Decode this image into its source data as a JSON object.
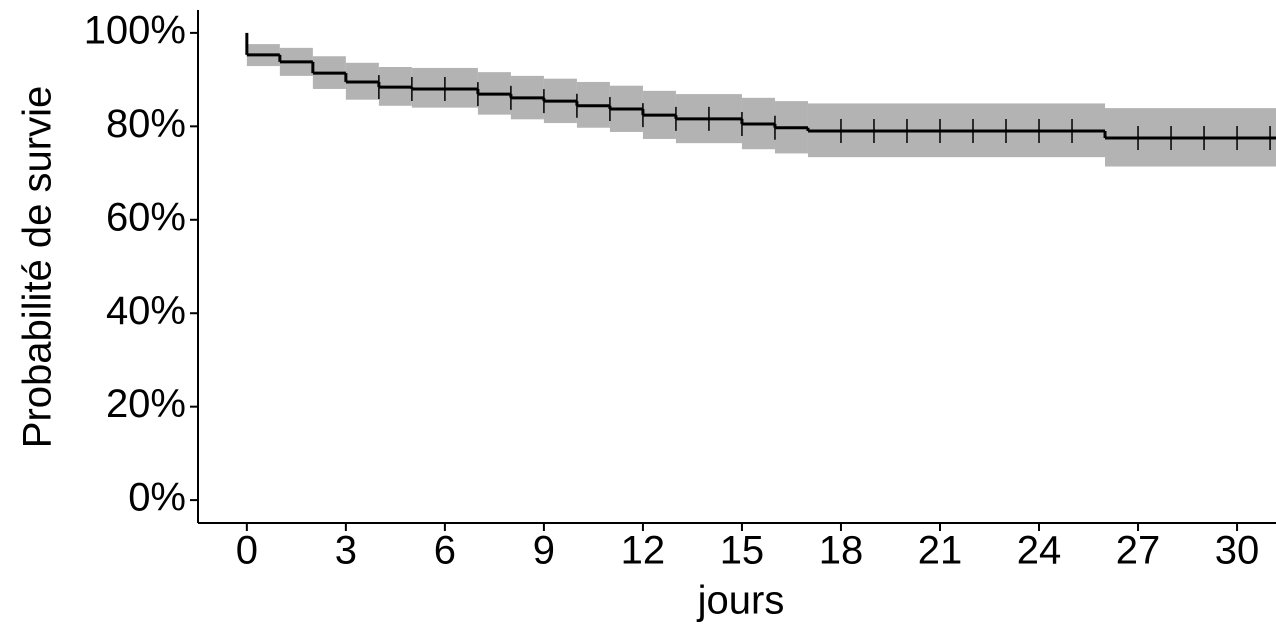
{
  "chart_data": {
    "type": "survival",
    "xlabel": "jours",
    "ylabel": "Probabilité de survie",
    "x": [
      0,
      0,
      1,
      2,
      3,
      4,
      5,
      7,
      8,
      9,
      10,
      11,
      12,
      13,
      15,
      16,
      17,
      26
    ],
    "values": [
      100,
      95.3,
      93.8,
      91.4,
      89.5,
      88.4,
      88.0,
      86.9,
      86.1,
      85.4,
      84.4,
      83.7,
      82.4,
      81.6,
      80.5,
      79.7,
      79.0,
      77.5
    ],
    "lower": [
      null,
      92.9,
      90.8,
      88.0,
      85.7,
      84.4,
      84.0,
      82.5,
      81.5,
      80.7,
      79.7,
      78.8,
      77.3,
      76.4,
      75.1,
      74.2,
      73.4,
      71.4
    ],
    "upper": [
      null,
      97.6,
      96.8,
      95.0,
      93.6,
      92.7,
      92.5,
      91.6,
      90.8,
      90.2,
      89.5,
      88.7,
      87.6,
      86.9,
      86.1,
      85.4,
      84.9,
      83.9
    ],
    "censored": [
      4,
      5,
      6,
      7,
      8,
      9,
      10,
      11,
      12,
      13,
      14,
      15,
      16,
      18,
      19,
      20,
      21,
      22,
      23,
      24,
      25,
      27,
      28,
      29,
      30,
      31
    ],
    "color": "#000000",
    "band_color": "#b3b3b3",
    "xlim": [
      -1.48,
      31.18
    ],
    "ylim": [
      -4.9,
      104.9
    ],
    "xticks": [
      0,
      3,
      6,
      9,
      12,
      15,
      18,
      21,
      24,
      27,
      30
    ],
    "yticks": [
      {
        "value": 0,
        "label": "0%"
      },
      {
        "value": 20,
        "label": "20%"
      },
      {
        "value": 40,
        "label": "40%"
      },
      {
        "value": 60,
        "label": "60%"
      },
      {
        "value": 80,
        "label": "80%"
      },
      {
        "value": 100,
        "label": "100%"
      }
    ]
  }
}
